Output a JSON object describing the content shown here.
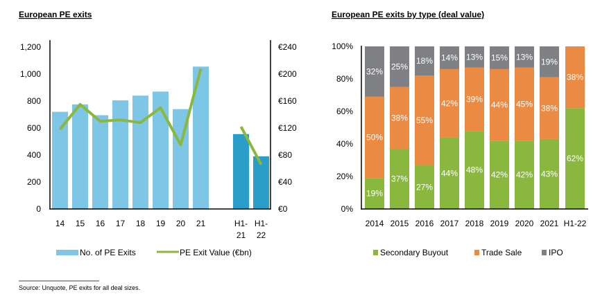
{
  "chart_data": [
    {
      "type": "bar+line",
      "title": "European PE exits",
      "categories": [
        "14",
        "15",
        "16",
        "17",
        "18",
        "19",
        "20",
        "21",
        "H1-21",
        "H1-22"
      ],
      "category_lines": [
        [
          "14"
        ],
        [
          "15"
        ],
        [
          "16"
        ],
        [
          "17"
        ],
        [
          "18"
        ],
        [
          "19"
        ],
        [
          "20"
        ],
        [
          "21"
        ],
        [
          "H1-",
          "21"
        ],
        [
          "H1-",
          "22"
        ]
      ],
      "series": [
        {
          "name": "No. of PE Exits",
          "type": "bar",
          "axis": "left",
          "values": [
            720,
            775,
            695,
            805,
            840,
            870,
            740,
            1055,
            555,
            390
          ],
          "color": "#7dc6e5",
          "highlight_color": "#2a9dc9",
          "highlight_from": 8
        },
        {
          "name": "PE Exit Value (€bn)",
          "type": "line",
          "axis": "right",
          "values": [
            118,
            155,
            130,
            132,
            128,
            150,
            95,
            208,
            122,
            66
          ],
          "color": "#8ab83f"
        }
      ],
      "left_axis": {
        "ylim": [
          0,
          1200
        ],
        "ticks": [
          "0",
          "200",
          "400",
          "600",
          "800",
          "1,000",
          "1,200"
        ]
      },
      "right_axis": {
        "ylim": [
          0,
          240
        ],
        "ticks": [
          "€0",
          "€40",
          "€80",
          "€120",
          "€160",
          "€200",
          "€240"
        ]
      },
      "legend": "bottom"
    },
    {
      "type": "stacked-bar",
      "title": "European PE exits by type (deal value)",
      "categories": [
        "2014",
        "2015",
        "2016",
        "2017",
        "2018",
        "2019",
        "2020",
        "2021",
        "H1-22"
      ],
      "series": [
        {
          "name": "Secondary Buyout",
          "values": [
            19,
            37,
            27,
            44,
            48,
            42,
            42,
            43,
            62
          ],
          "color": "#8ab83f"
        },
        {
          "name": "Trade Sale",
          "values": [
            50,
            38,
            55,
            42,
            39,
            44,
            45,
            38,
            38
          ],
          "color": "#eb8a42"
        },
        {
          "name": "IPO",
          "values": [
            32,
            25,
            18,
            14,
            13,
            15,
            13,
            19,
            0
          ],
          "color": "#7f8083"
        }
      ],
      "ylim": [
        0,
        100
      ],
      "ticks": [
        "0%",
        "20%",
        "40%",
        "60%",
        "80%",
        "100%"
      ],
      "legend": "bottom"
    }
  ],
  "footer": {
    "source": "Source:  Unquote, PE exits for all deal sizes."
  }
}
